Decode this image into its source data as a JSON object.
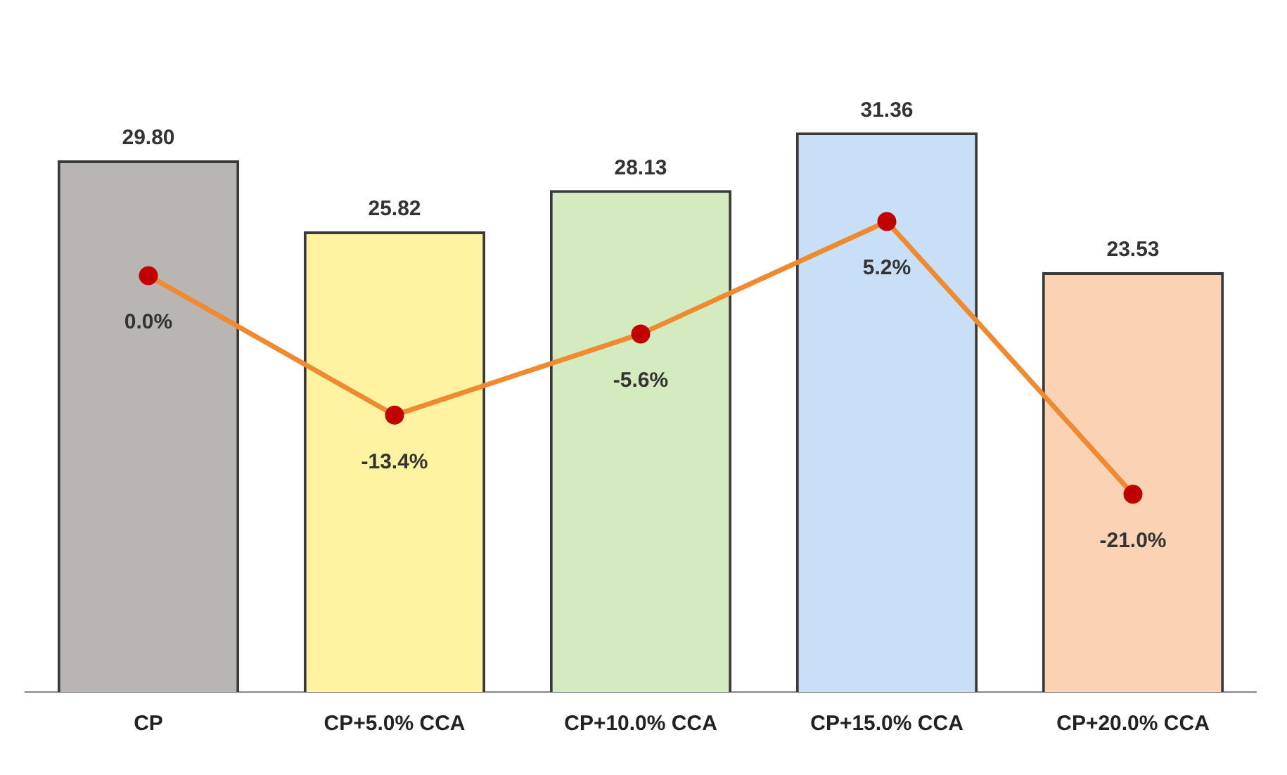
{
  "chart_data": {
    "type": "bar",
    "categories": [
      "CP",
      "CP+5.0% CCA",
      "CP+10.0% CCA",
      "CP+15.0% CCA",
      "CP+20.0% CCA"
    ],
    "series": [
      {
        "colors": [
          "#b9b5b3",
          "#fff2a0",
          "#d4ebc0",
          "#c8e0f7",
          "#fad2b4"
        ],
        "values": [
          29.8,
          25.82,
          28.13,
          31.36,
          23.53
        ],
        "value_labels": [
          "29.80",
          "25.82",
          "28.13",
          "31.36",
          "23.53"
        ]
      },
      {
        "type": "line",
        "axis": "y2",
        "color": "#f08a30",
        "values": [
          0.0,
          -13.4,
          -5.6,
          5.2,
          -21.0
        ],
        "value_labels": [
          "0.0%",
          "-13.4%",
          "-5.6%",
          "5.2%",
          "-21.0%"
        ]
      }
    ],
    "tick_labels": "x",
    "grid": false,
    "legend": false,
    "marker": "circle",
    "line_style": "solid"
  }
}
